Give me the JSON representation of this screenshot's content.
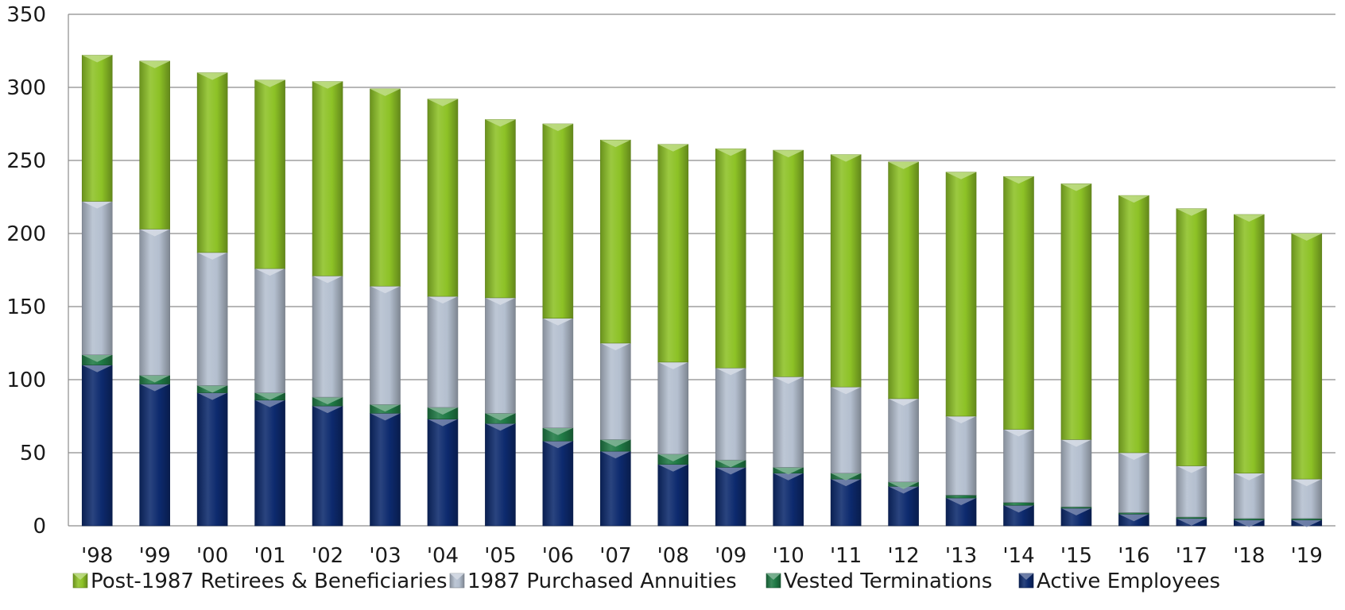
{
  "chart_data": {
    "type": "bar",
    "stacked": true,
    "categories": [
      "'98",
      "'99",
      "'00",
      "'01",
      "'02",
      "'03",
      "'04",
      "'05",
      "'06",
      "'07",
      "'08",
      "'09",
      "'10",
      "'11",
      "'12",
      "'13",
      "'14",
      "'15",
      "'16",
      "'17",
      "'18",
      "'19"
    ],
    "series": [
      {
        "name": "Active Employees",
        "color": "#0d2a6e",
        "values": [
          110,
          97,
          91,
          86,
          82,
          77,
          73,
          70,
          58,
          51,
          42,
          40,
          36,
          32,
          27,
          19,
          14,
          12,
          8,
          5,
          4,
          4
        ]
      },
      {
        "name": "Vested Terminations",
        "color": "#1f7a45",
        "values": [
          7,
          6,
          5,
          5,
          6,
          6,
          8,
          7,
          9,
          8,
          7,
          5,
          4,
          4,
          3,
          2,
          2,
          1,
          1,
          1,
          1,
          1
        ]
      },
      {
        "name": "1987 Purchased Annuities",
        "color": "#b4bfcf",
        "values": [
          105,
          100,
          91,
          85,
          83,
          81,
          76,
          79,
          75,
          66,
          63,
          63,
          62,
          59,
          57,
          54,
          50,
          46,
          41,
          35,
          31,
          27
        ]
      },
      {
        "name": "Post-1987 Retirees & Beneficiaries",
        "color": "#8dc226",
        "values": [
          100,
          115,
          123,
          129,
          133,
          135,
          135,
          122,
          133,
          139,
          149,
          150,
          155,
          159,
          162,
          167,
          173,
          175,
          176,
          176,
          177,
          168
        ]
      }
    ],
    "legend_order": [
      "Post-1987 Retirees & Beneficiaries",
      "1987 Purchased Annuities",
      "Vested Terminations",
      "Active Employees"
    ],
    "legend_position": "bottom",
    "yticks": [
      0,
      50,
      100,
      150,
      200,
      250,
      300,
      350
    ],
    "ylim": [
      0,
      350
    ],
    "grid": true
  }
}
